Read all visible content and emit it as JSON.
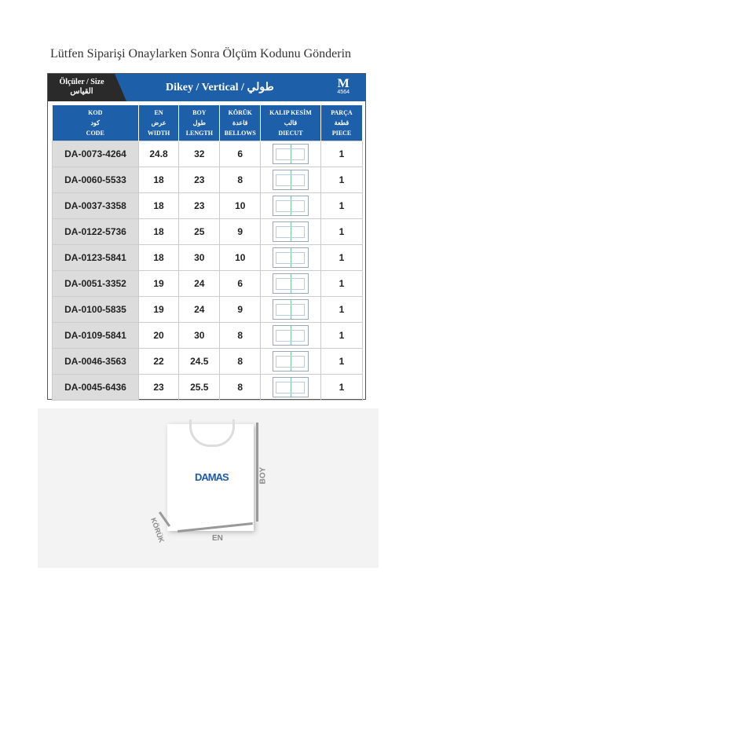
{
  "title": "Lütfen Siparişi Onaylarken Sonra Ölçüm Kodunu Gönderin",
  "band": {
    "size_label": "Ölçüler / Size",
    "size_label_ar": "القياس",
    "orientation": "Dikey / Vertical / طولي",
    "model": "M",
    "model_code": "4564"
  },
  "columns": [
    {
      "tr": "KOD",
      "ar": "كود",
      "en": "CODE"
    },
    {
      "tr": "EN",
      "ar": "عرض",
      "en": "WIDTH"
    },
    {
      "tr": "BOY",
      "ar": "طول",
      "en": "LENGTH"
    },
    {
      "tr": "KÖRÜK",
      "ar": "قاعدة",
      "en": "BELLOWS"
    },
    {
      "tr": "KALIP KESİM",
      "ar": "قالب",
      "en": "DIECUT"
    },
    {
      "tr": "PARÇA",
      "ar": "قطعة",
      "en": "PIECE"
    }
  ],
  "rows": [
    {
      "code": "DA-0073-4264",
      "en": "24.8",
      "boy": "32",
      "koruk": "6",
      "piece": "1"
    },
    {
      "code": "DA-0060-5533",
      "en": "18",
      "boy": "23",
      "koruk": "8",
      "piece": "1"
    },
    {
      "code": "DA-0037-3358",
      "en": "18",
      "boy": "23",
      "koruk": "10",
      "piece": "1"
    },
    {
      "code": "DA-0122-5736",
      "en": "18",
      "boy": "25",
      "koruk": "9",
      "piece": "1"
    },
    {
      "code": "DA-0123-5841",
      "en": "18",
      "boy": "30",
      "koruk": "10",
      "piece": "1"
    },
    {
      "code": "DA-0051-3352",
      "en": "19",
      "boy": "24",
      "koruk": "6",
      "piece": "1"
    },
    {
      "code": "DA-0100-5835",
      "en": "19",
      "boy": "24",
      "koruk": "9",
      "piece": "1"
    },
    {
      "code": "DA-0109-5841",
      "en": "20",
      "boy": "30",
      "koruk": "8",
      "piece": "1"
    },
    {
      "code": "DA-0046-3563",
      "en": "22",
      "boy": "24.5",
      "koruk": "8",
      "piece": "1"
    },
    {
      "code": "DA-0045-6436",
      "en": "23",
      "boy": "25.5",
      "koruk": "8",
      "piece": "1"
    }
  ],
  "illustration": {
    "logo": "DAMAS",
    "boy": "BOY",
    "en": "EN",
    "koruk": "KÖRÜK"
  }
}
